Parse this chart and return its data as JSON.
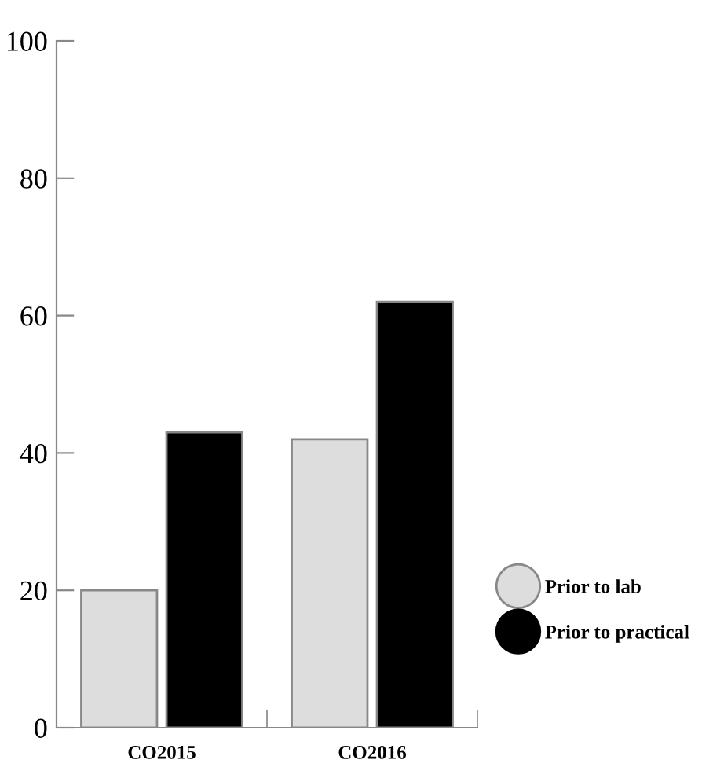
{
  "chart_data": {
    "type": "bar",
    "categories": [
      "CO2015",
      "CO2016"
    ],
    "series": [
      {
        "name": "Prior to lab",
        "color": "#dddddd",
        "values": [
          20,
          42
        ]
      },
      {
        "name": "Prior to practical",
        "color": "#000000",
        "values": [
          43,
          62
        ]
      }
    ],
    "ylim": [
      0,
      100
    ],
    "yticks": [
      0,
      20,
      40,
      60,
      80,
      100
    ],
    "legend": "right",
    "grid": false
  }
}
